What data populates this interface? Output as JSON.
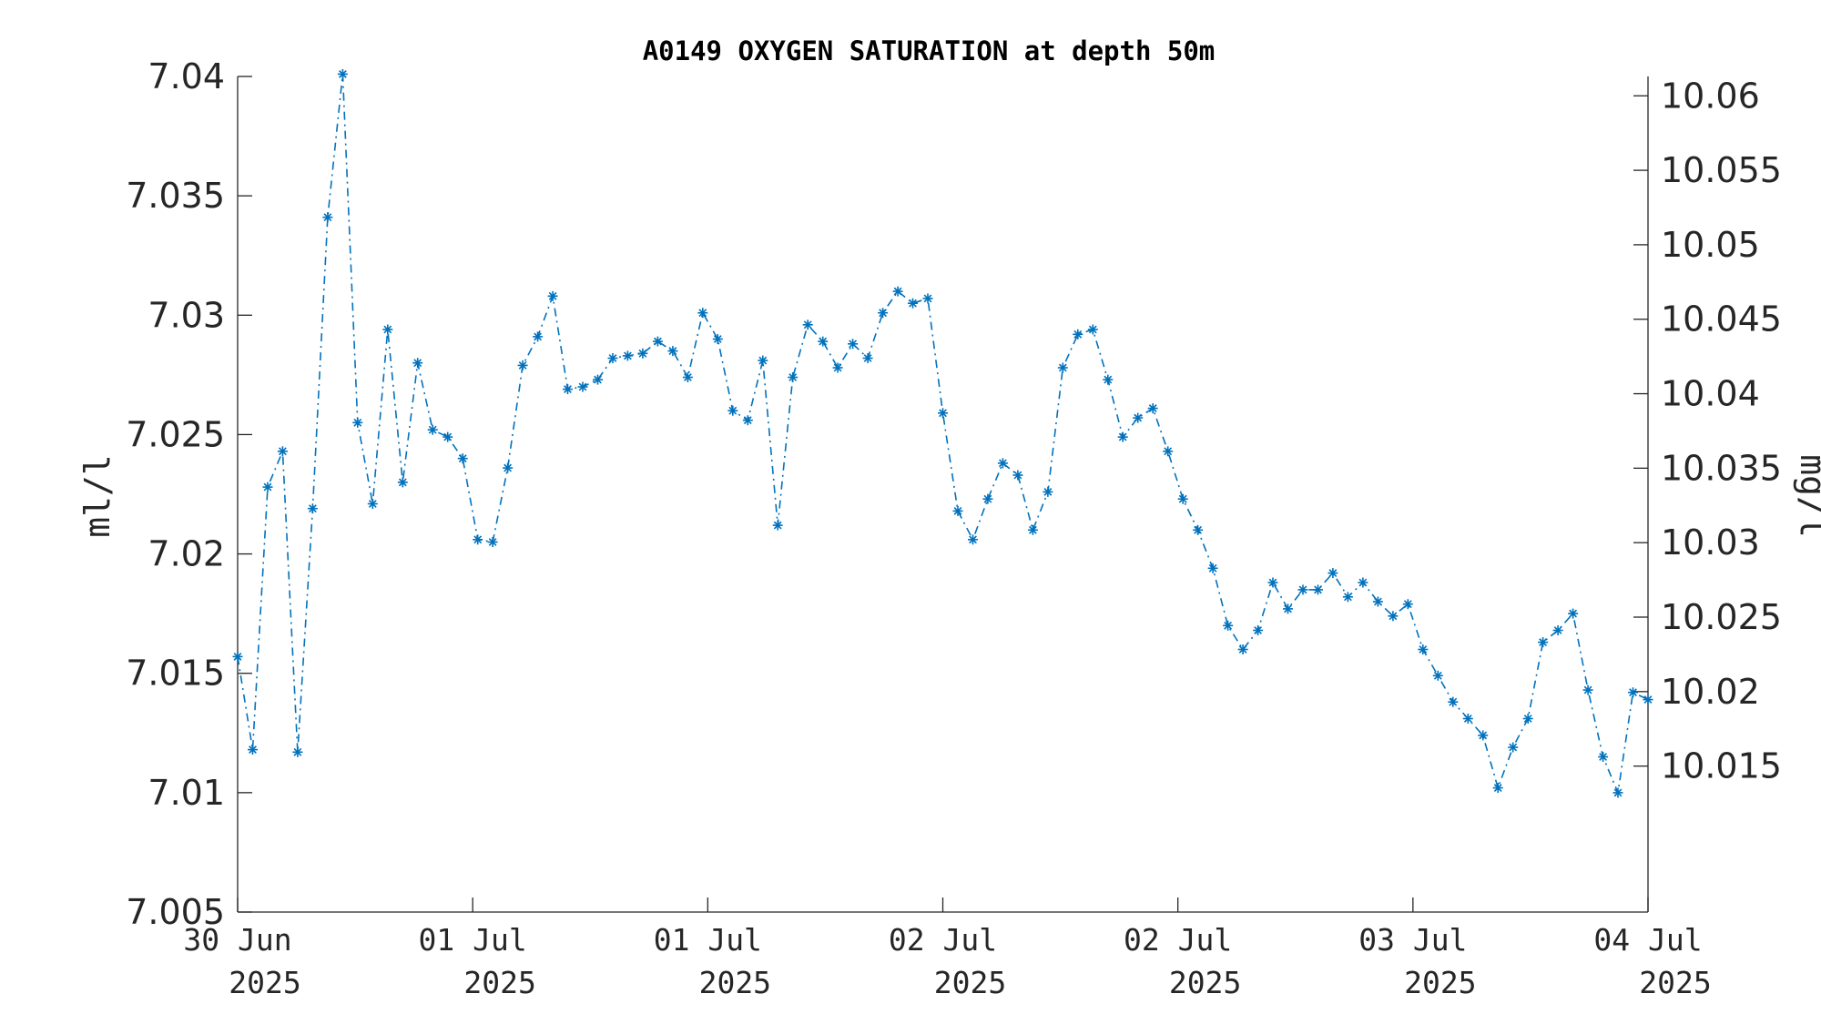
{
  "chart_data": {
    "type": "line",
    "title": "A0149 OXYGEN SATURATION at depth 50m",
    "ylabel": "ml/l",
    "ylabel_right": "mg/l",
    "ylim": [
      7.005,
      7.04
    ],
    "ylim_right": [
      10.0052,
      10.0613
    ],
    "yticks": [
      "7.005",
      "7.01",
      "7.015",
      "7.02",
      "7.025",
      "7.03",
      "7.035",
      "7.04"
    ],
    "yticks_right": [
      "10.015",
      "10.02",
      "10.025",
      "10.03",
      "10.035",
      "10.04",
      "10.045",
      "10.05",
      "10.055",
      "10.06"
    ],
    "xlim": [
      "2025-06-30 00:00",
      "2025-07-04 00:00"
    ],
    "xticks": [
      {
        "date": "30 Jun",
        "year": "2025"
      },
      {
        "date": "01 Jul",
        "year": "2025"
      },
      {
        "date": "01 Jul",
        "year": "2025"
      },
      {
        "date": "02 Jul",
        "year": "2025"
      },
      {
        "date": "02 Jul",
        "year": "2025"
      },
      {
        "date": "03 Jul",
        "year": "2025"
      },
      {
        "date": "04 Jul",
        "year": "2025"
      }
    ],
    "marker": "asterisk",
    "line_style": "dash-dot",
    "color": "#0072BD",
    "grid": false,
    "series": [
      {
        "values": [
          7.0157,
          7.0118,
          7.0228,
          7.0243,
          7.0117,
          7.0219,
          7.0341,
          7.0401,
          7.0255,
          7.0221,
          7.0294,
          7.023,
          7.028,
          7.0252,
          7.0249,
          7.024,
          7.0206,
          7.0205,
          7.0236,
          7.0279,
          7.0291,
          7.0308,
          7.0269,
          7.027,
          7.0273,
          7.0282,
          7.0283,
          7.0284,
          7.0289,
          7.0285,
          7.0274,
          7.0301,
          7.029,
          7.026,
          7.0256,
          7.0281,
          7.0212,
          7.0274,
          7.0296,
          7.0289,
          7.0278,
          7.0288,
          7.0282,
          7.0301,
          7.031,
          7.0305,
          7.0307,
          7.0259,
          7.0218,
          7.0206,
          7.0223,
          7.0238,
          7.0233,
          7.021,
          7.0226,
          7.0278,
          7.0292,
          7.0294,
          7.0273,
          7.0249,
          7.0257,
          7.0261,
          7.0243,
          7.0223,
          7.021,
          7.0194,
          7.017,
          7.016,
          7.0168,
          7.0188,
          7.0177,
          7.0185,
          7.0185,
          7.0192,
          7.0182,
          7.0188,
          7.018,
          7.0174,
          7.0179,
          7.016,
          7.0149,
          7.0138,
          7.0131,
          7.0124,
          7.0102,
          7.0119,
          7.0131,
          7.0163,
          7.0168,
          7.0175,
          7.0143,
          7.0115,
          7.01,
          7.0142,
          7.0139
        ]
      }
    ]
  }
}
